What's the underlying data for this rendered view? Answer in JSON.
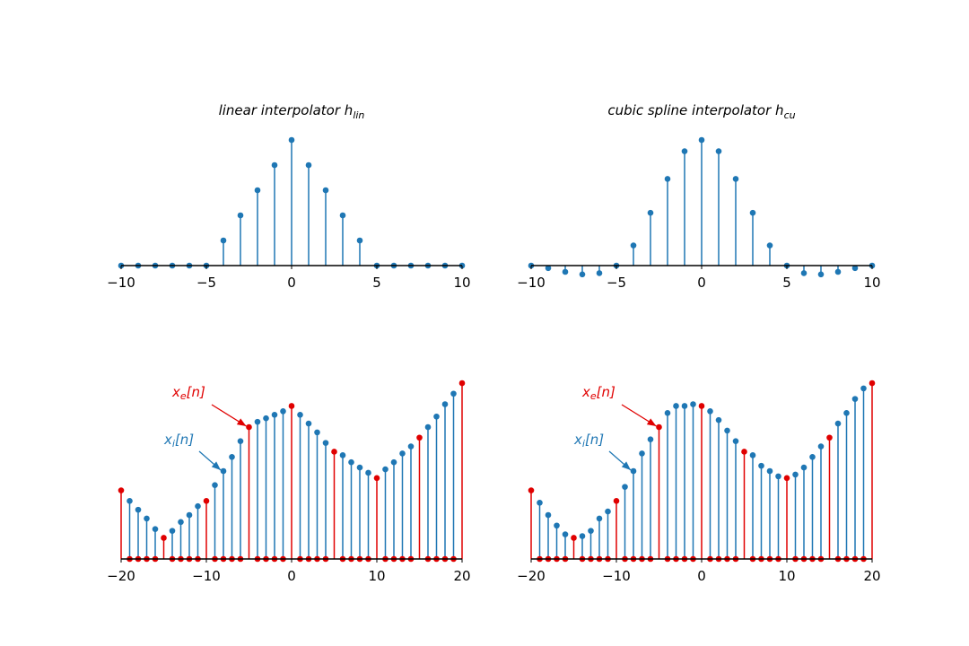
{
  "chart_data": [
    {
      "type": "stem",
      "title": "linear interpolator h",
      "title_sub": "lin",
      "xlim": [
        -10,
        10
      ],
      "ylim": [
        -0.1,
        1.0
      ],
      "xticks": [
        -10,
        -5,
        0,
        5,
        10
      ],
      "xtick_labels": [
        "−10",
        "−5",
        "0",
        "5",
        "10"
      ],
      "color": "#1f77b4",
      "x": [
        -10,
        -9,
        -8,
        -7,
        -6,
        -5,
        -4,
        -3,
        -2,
        -1,
        0,
        1,
        2,
        3,
        4,
        5,
        6,
        7,
        8,
        9,
        10
      ],
      "y": [
        0,
        0,
        0,
        0,
        0,
        0,
        0.2,
        0.4,
        0.6,
        0.8,
        1.0,
        0.8,
        0.6,
        0.4,
        0.2,
        0,
        0,
        0,
        0,
        0,
        0
      ]
    },
    {
      "type": "stem",
      "title": "cubic spline interpolator h",
      "title_sub": "cu",
      "xlim": [
        -10,
        10
      ],
      "ylim": [
        -0.1,
        1.0
      ],
      "xticks": [
        -10,
        -5,
        0,
        5,
        10
      ],
      "xtick_labels": [
        "−10",
        "−5",
        "0",
        "5",
        "10"
      ],
      "color": "#1f77b4",
      "x": [
        -10,
        -9,
        -8,
        -7,
        -6,
        -5,
        -4,
        -3,
        -2,
        -1,
        0,
        1,
        2,
        3,
        4,
        5,
        6,
        7,
        8,
        9,
        10
      ],
      "y": [
        0,
        -0.02,
        -0.05,
        -0.07,
        -0.06,
        0,
        0.16,
        0.42,
        0.69,
        0.91,
        1.0,
        0.91,
        0.69,
        0.42,
        0.16,
        0,
        -0.06,
        -0.07,
        -0.05,
        -0.02,
        0
      ]
    },
    {
      "type": "stem",
      "xlim": [
        -20,
        20
      ],
      "ylim": [
        0,
        1.0
      ],
      "xticks": [
        -20,
        -10,
        0,
        10,
        20
      ],
      "xtick_labels": [
        "−20",
        "−10",
        "0",
        "10",
        "20"
      ],
      "series": [
        {
          "label": "x",
          "label_sub": "i",
          "label_suffix": "[n]",
          "color": "#1f77b4",
          "x": [
            -19,
            -18,
            -17,
            -16,
            -14,
            -13,
            -12,
            -11,
            -9,
            -8,
            -7,
            -6,
            -4,
            -3,
            -2,
            -1,
            1,
            2,
            3,
            4,
            6,
            7,
            8,
            9,
            11,
            12,
            13,
            14,
            16,
            17,
            18,
            19
          ],
          "y": [
            0.33,
            0.28,
            0.23,
            0.17,
            0.16,
            0.21,
            0.25,
            0.3,
            0.42,
            0.5,
            0.58,
            0.67,
            0.78,
            0.8,
            0.82,
            0.84,
            0.82,
            0.77,
            0.72,
            0.66,
            0.59,
            0.55,
            0.52,
            0.49,
            0.51,
            0.55,
            0.6,
            0.64,
            0.75,
            0.81,
            0.88,
            0.94
          ]
        },
        {
          "label": "x",
          "label_sub": "e",
          "label_suffix": "[n]",
          "color": "#e00000",
          "x": [
            -20,
            -19,
            -18,
            -17,
            -16,
            -15,
            -14,
            -13,
            -12,
            -11,
            -10,
            -9,
            -8,
            -7,
            -6,
            -5,
            -4,
            -3,
            -2,
            -1,
            0,
            1,
            2,
            3,
            4,
            5,
            6,
            7,
            8,
            9,
            10,
            11,
            12,
            13,
            14,
            15,
            16,
            17,
            18,
            19,
            20
          ],
          "y": [
            0.39,
            0,
            0,
            0,
            0,
            0.12,
            0,
            0,
            0,
            0,
            0.33,
            0,
            0,
            0,
            0,
            0.75,
            0,
            0,
            0,
            0,
            0.87,
            0,
            0,
            0,
            0,
            0.61,
            0,
            0,
            0,
            0,
            0.46,
            0,
            0,
            0,
            0,
            0.69,
            0,
            0,
            0,
            0,
            1.0
          ]
        }
      ]
    },
    {
      "type": "stem",
      "xlim": [
        -20,
        20
      ],
      "ylim": [
        0,
        1.0
      ],
      "xticks": [
        -20,
        -10,
        0,
        10,
        20
      ],
      "xtick_labels": [
        "−20",
        "−10",
        "0",
        "10",
        "20"
      ],
      "series": [
        {
          "label": "x",
          "label_sub": "i",
          "label_suffix": "[n]",
          "color": "#1f77b4",
          "x": [
            -19,
            -18,
            -17,
            -16,
            -14,
            -13,
            -12,
            -11,
            -9,
            -8,
            -7,
            -6,
            -4,
            -3,
            -2,
            -1,
            1,
            2,
            3,
            4,
            6,
            7,
            8,
            9,
            11,
            12,
            13,
            14,
            16,
            17,
            18,
            19
          ],
          "y": [
            0.32,
            0.25,
            0.19,
            0.14,
            0.13,
            0.16,
            0.23,
            0.27,
            0.41,
            0.5,
            0.6,
            0.68,
            0.83,
            0.87,
            0.87,
            0.88,
            0.84,
            0.79,
            0.73,
            0.67,
            0.59,
            0.53,
            0.5,
            0.47,
            0.48,
            0.52,
            0.58,
            0.64,
            0.77,
            0.83,
            0.91,
            0.97
          ]
        },
        {
          "label": "x",
          "label_sub": "e",
          "label_suffix": "[n]",
          "color": "#e00000",
          "x": [
            -20,
            -19,
            -18,
            -17,
            -16,
            -15,
            -14,
            -13,
            -12,
            -11,
            -10,
            -9,
            -8,
            -7,
            -6,
            -5,
            -4,
            -3,
            -2,
            -1,
            0,
            1,
            2,
            3,
            4,
            5,
            6,
            7,
            8,
            9,
            10,
            11,
            12,
            13,
            14,
            15,
            16,
            17,
            18,
            19,
            20
          ],
          "y": [
            0.39,
            0,
            0,
            0,
            0,
            0.12,
            0,
            0,
            0,
            0,
            0.33,
            0,
            0,
            0,
            0,
            0.75,
            0,
            0,
            0,
            0,
            0.87,
            0,
            0,
            0,
            0,
            0.61,
            0,
            0,
            0,
            0,
            0.46,
            0,
            0,
            0,
            0,
            0.69,
            0,
            0,
            0,
            0,
            1.0
          ]
        }
      ]
    }
  ]
}
